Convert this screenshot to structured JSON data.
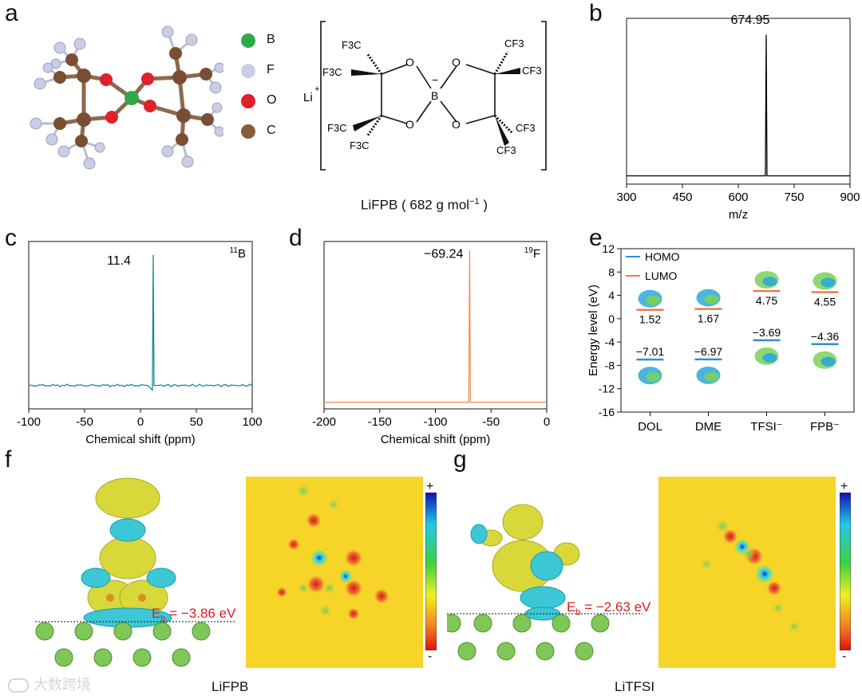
{
  "panels": {
    "a": "a",
    "b": "b",
    "c": "c",
    "d": "d",
    "e": "e",
    "f": "f",
    "g": "g"
  },
  "panel_a": {
    "legend": [
      {
        "symbol": "B",
        "color": "#2fa84a"
      },
      {
        "symbol": "F",
        "color": "#c9cde6"
      },
      {
        "symbol": "O",
        "color": "#e0202a"
      },
      {
        "symbol": "C",
        "color": "#8a5a3c"
      }
    ],
    "structure": {
      "cation": "Li",
      "cation_charge": "+",
      "boron": "B",
      "boron_charge": "−",
      "oxygen": "O",
      "group_left": "F3C",
      "group_right": "CF3",
      "caption": "LiFPB ( 682 g mol",
      "caption_sup": "−1",
      "caption_end": " )"
    }
  },
  "chart_data": [
    {
      "id": "b",
      "type": "line",
      "title": "",
      "xlabel": "m/z",
      "ylabel": "",
      "xlim": [
        300,
        900
      ],
      "xticks": [
        "300",
        "450",
        "600",
        "750",
        "900"
      ],
      "peaks": [
        {
          "x": 674.95,
          "rel_height": 0.9
        }
      ],
      "annotation": "674.95",
      "color": "#000000"
    },
    {
      "id": "c",
      "type": "line",
      "title": "",
      "xlabel": "Chemical shift (ppm)",
      "ylabel": "",
      "xlim": [
        -100,
        100
      ],
      "xticks": [
        "-100",
        "-50",
        "0",
        "50",
        "100"
      ],
      "peaks": [
        {
          "x": 11.4,
          "rel_height": 0.92
        }
      ],
      "annotation": "11.4",
      "nucleus": "B",
      "nucleus_mass": "11",
      "color": "#1a8a95"
    },
    {
      "id": "d",
      "type": "line",
      "title": "",
      "xlabel": "Chemical shift (ppm)",
      "ylabel": "",
      "xlim": [
        -200,
        0
      ],
      "xticks": [
        "-200",
        "-150",
        "-100",
        "-50",
        "0"
      ],
      "peaks": [
        {
          "x": -69.24,
          "rel_height": 0.95
        }
      ],
      "annotation": "−69.24",
      "nucleus": "F",
      "nucleus_mass": "19",
      "color": "#f08a4b"
    },
    {
      "id": "e",
      "type": "scatter",
      "title": "",
      "xlabel": "",
      "ylabel": "Energy level (eV)",
      "ylim": [
        -16,
        12
      ],
      "yticks": [
        "12",
        "8",
        "4",
        "0",
        "-4",
        "-8",
        "-12",
        "-16"
      ],
      "categories": [
        "DOL",
        "DME",
        "TFSI⁻",
        "FPB⁻"
      ],
      "series": [
        {
          "name": "HOMO",
          "color": "#2f8fd8",
          "values": [
            -7.01,
            -6.97,
            -3.69,
            -4.36
          ],
          "labels": [
            "−7.01",
            "−6.97",
            "−3.69",
            "−4.36"
          ]
        },
        {
          "name": "LUMO",
          "color": "#f07a45",
          "values": [
            1.52,
            1.67,
            4.75,
            4.55
          ],
          "labels": [
            "1.52",
            "1.67",
            "4.75",
            "4.55"
          ]
        }
      ]
    }
  ],
  "panel_f": {
    "eb_prefix": "E",
    "eb_sub": "b",
    "eb_value": " = −3.86 eV",
    "caption": "LiFPB",
    "plus": "+",
    "minus": "-"
  },
  "panel_g": {
    "eb_prefix": "E",
    "eb_sub": "b",
    "eb_value": " = −2.63 eV",
    "caption": "LiTFSI",
    "plus": "+",
    "minus": "-"
  },
  "watermark": "大数跨境"
}
